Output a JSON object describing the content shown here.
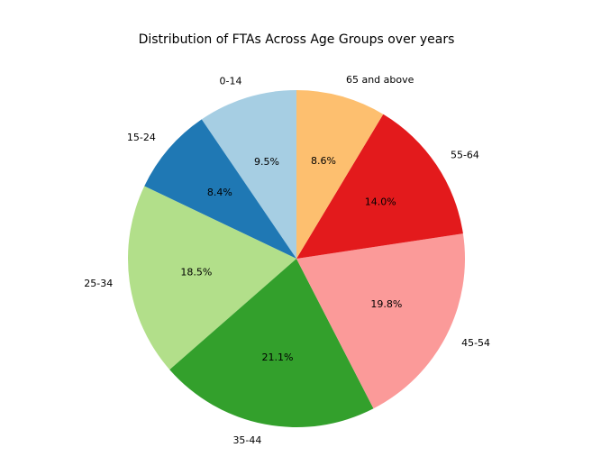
{
  "chart_data": {
    "type": "pie",
    "title": "Distribution of FTAs Across Age Groups over years",
    "start_angle_deg": 90,
    "direction": "counterclockwise",
    "slices": [
      {
        "label": "0-14",
        "value": 9.5,
        "display": "9.5%",
        "color": "#a6cee3"
      },
      {
        "label": "15-24",
        "value": 8.4,
        "display": "8.4%",
        "color": "#1f78b4"
      },
      {
        "label": "25-34",
        "value": 18.5,
        "display": "18.5%",
        "color": "#b2df8a"
      },
      {
        "label": "35-44",
        "value": 21.1,
        "display": "21.1%",
        "color": "#33a02c"
      },
      {
        "label": "45-54",
        "value": 19.8,
        "display": "19.8%",
        "color": "#fb9a99"
      },
      {
        "label": "55-64",
        "value": 14.0,
        "display": "14.0%",
        "color": "#e31a1c"
      },
      {
        "label": "65 and above",
        "value": 8.6,
        "display": "8.6%",
        "color": "#fdbf6f"
      }
    ]
  }
}
